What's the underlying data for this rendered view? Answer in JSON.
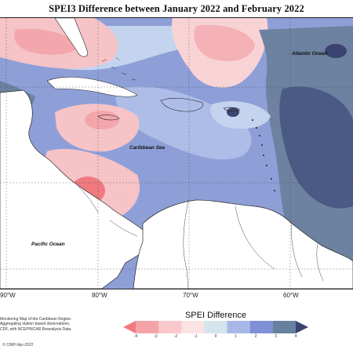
{
  "title": "SPEI3 Difference between January 2022 and February 2022",
  "labels": {
    "atlantic": "Atlantic Ocean",
    "caribbean": "Caribbean Sea",
    "pacific": "Pacific Ocean"
  },
  "longitude_ticks": [
    "90°W",
    "80°W",
    "70°W",
    "60°W"
  ],
  "credit_lines": [
    "Monitoring Map of the Caribbean Region.",
    "Aggregating station based observations,",
    "CDF, with NCEP/NCAR Reanalysis Data."
  ],
  "copyright": "© CIMH Apr-2022",
  "legend": {
    "title": "SPEI Difference",
    "ticks": [
      "-4",
      "-3",
      "-2",
      "-1",
      "0",
      "1",
      "2",
      "3",
      "4"
    ],
    "colors": [
      "#f07a80",
      "#f4a4a8",
      "#f8c8cb",
      "#fbe3e4",
      "#d3e4ec",
      "#a8b8e6",
      "#7f90d6",
      "#66809e",
      "#3b4470"
    ]
  }
}
